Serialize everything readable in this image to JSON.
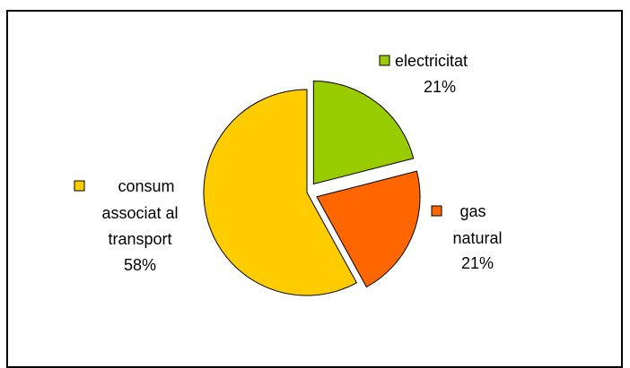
{
  "chart_data": {
    "type": "pie",
    "title": "",
    "slices": [
      {
        "label_lines": [
          "electricitat"
        ],
        "percent_label": "21%",
        "value": 21,
        "color": "#99cc00",
        "exploded": true
      },
      {
        "label_lines": [
          "gas",
          "natural"
        ],
        "percent_label": "21%",
        "value": 21,
        "color": "#ff6600",
        "exploded": true
      },
      {
        "label_lines": [
          "consum",
          "associat al",
          "transport"
        ],
        "percent_label": "58%",
        "value": 58,
        "color": "#ffcc00",
        "exploded": false
      }
    ],
    "legend_keys_in_labels": true,
    "grid": false
  }
}
